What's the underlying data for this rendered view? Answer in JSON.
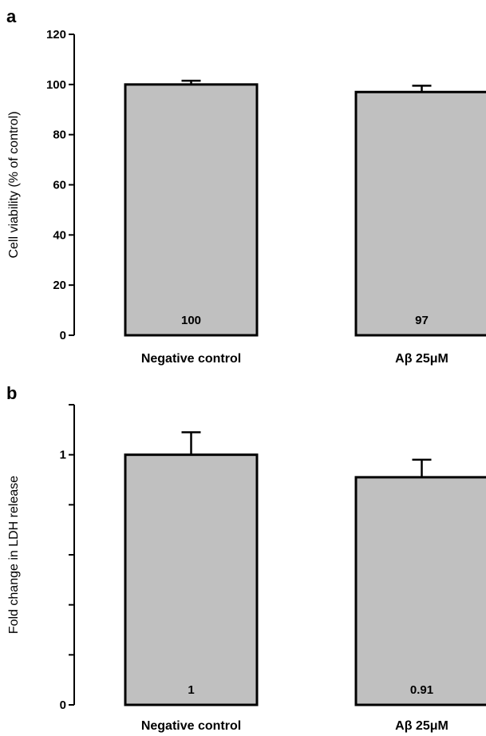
{
  "chart_data": [
    {
      "type": "bar",
      "panel": "a",
      "categories": [
        "Negative control",
        "Aβ 25μM"
      ],
      "values": [
        100,
        97
      ],
      "errors": [
        1.5,
        2.5
      ],
      "data_labels": [
        "100",
        "97"
      ],
      "title": "",
      "xlabel": "",
      "ylabel": "Cell viability (% of control)",
      "ylim": [
        0,
        120
      ],
      "yticks": [
        0,
        20,
        40,
        60,
        80,
        100,
        120
      ],
      "ytick_labels": [
        "0",
        "20",
        "40",
        "60",
        "80",
        "100",
        "120"
      ],
      "grid": false,
      "colors": {
        "bar_fill": "#c0c0c0",
        "bar_edge": "#000000"
      }
    },
    {
      "type": "bar",
      "panel": "b",
      "categories": [
        "Negative control",
        "Aβ 25μM"
      ],
      "values": [
        1,
        0.91
      ],
      "errors": [
        0.09,
        0.07
      ],
      "data_labels": [
        "1",
        "0.91"
      ],
      "title": "",
      "xlabel": "",
      "ylabel": "Fold change in LDH release",
      "ylim": [
        0,
        1.2
      ],
      "yticks": [
        0,
        0.2,
        0.4,
        0.6,
        0.8,
        1.0,
        1.2
      ],
      "ytick_labels": [
        "0",
        "",
        "",
        "",
        "",
        "1",
        ""
      ],
      "grid": false,
      "colors": {
        "bar_fill": "#c0c0c0",
        "bar_edge": "#000000"
      }
    }
  ]
}
